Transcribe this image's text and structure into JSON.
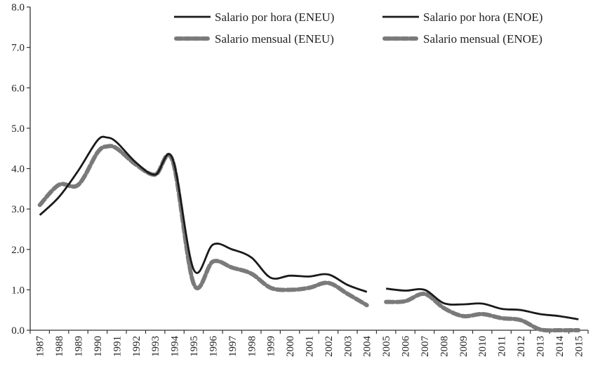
{
  "chart_data": {
    "type": "line",
    "title": "",
    "xlabel": "",
    "ylabel": "",
    "ylim": [
      0,
      8
    ],
    "yticks": [
      "0.0",
      "1.0",
      "2.0",
      "3.0",
      "4.0",
      "5.0",
      "6.0",
      "7.0",
      "8.0"
    ],
    "categories": [
      "1987",
      "1988",
      "1989",
      "1990",
      "1991",
      "1992",
      "1993",
      "1994",
      "1995",
      "1996",
      "1997",
      "1998",
      "1999",
      "2000",
      "2001",
      "2002",
      "2003",
      "2004",
      "2005",
      "2006",
      "2007",
      "2008",
      "2009",
      "2010",
      "2011",
      "2012",
      "2013",
      "2014",
      "2015"
    ],
    "legend_position": "top-right",
    "series": [
      {
        "name": "Salario por hora (ENEU)",
        "style": "solid",
        "color": "#1a1a1a",
        "x": [
          1987,
          1988,
          1989,
          1990,
          1990.5,
          1991,
          1992,
          1993,
          1993.9,
          1995,
          1996,
          1997,
          1998,
          1999,
          2000,
          2001,
          2002,
          2003,
          2004
        ],
        "values": [
          2.85,
          3.3,
          3.95,
          4.7,
          4.77,
          4.65,
          4.15,
          3.85,
          4.25,
          1.5,
          2.12,
          2.0,
          1.8,
          1.3,
          1.35,
          1.33,
          1.38,
          1.12,
          0.95
        ]
      },
      {
        "name": "Salario mensual (ENEU)",
        "style": "dashed",
        "color": "#7a7a7a",
        "x": [
          1987,
          1988,
          1989,
          1990,
          1990.5,
          1991,
          1992,
          1993,
          1993.9,
          1995,
          1996,
          1997,
          1998,
          1999,
          2000,
          2001,
          2002,
          2003,
          2004
        ],
        "values": [
          3.1,
          3.6,
          3.6,
          4.4,
          4.55,
          4.5,
          4.1,
          3.85,
          4.2,
          1.15,
          1.7,
          1.55,
          1.4,
          1.05,
          1.0,
          1.05,
          1.17,
          0.9,
          0.62
        ]
      },
      {
        "name": "Salario por hora (ENOE)",
        "style": "solid",
        "color": "#1a1a1a",
        "x": [
          2005,
          2006,
          2007,
          2008,
          2009,
          2010,
          2011,
          2012,
          2013,
          2014,
          2015
        ],
        "values": [
          1.03,
          0.98,
          1.0,
          0.67,
          0.64,
          0.66,
          0.53,
          0.5,
          0.4,
          0.35,
          0.27
        ]
      },
      {
        "name": "Salario mensual (ENOE)",
        "style": "dashed",
        "color": "#7a7a7a",
        "x": [
          2005,
          2006,
          2007,
          2008,
          2009,
          2010,
          2011,
          2012,
          2013,
          2014,
          2015
        ],
        "values": [
          0.7,
          0.72,
          0.9,
          0.55,
          0.35,
          0.4,
          0.3,
          0.25,
          0.02,
          0.0,
          0.0
        ]
      }
    ]
  }
}
